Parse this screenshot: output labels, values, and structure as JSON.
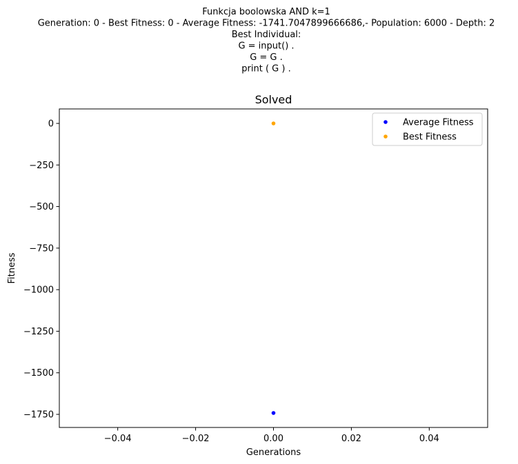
{
  "figure": {
    "suptitle_lines": [
      "Funkcja boolowska AND k=1",
      "Generation: 0 - Best Fitness: 0 - Average Fitness: -1741.7047899666686,- Population: 6000 - Depth: 2",
      "Best Individual:",
      "G = input() .",
      "G = G .",
      "print ( G ) ."
    ]
  },
  "chart_data": {
    "type": "scatter",
    "title": "Solved",
    "xlabel": "Generations",
    "ylabel": "Fitness",
    "xlim": [
      -0.055,
      0.055
    ],
    "ylim": [
      -1828.79,
      87.09
    ],
    "xticks": [
      -0.04,
      -0.02,
      0.0,
      0.02,
      0.04
    ],
    "xtick_labels": [
      "−0.04",
      "−0.02",
      "0.00",
      "0.02",
      "0.04"
    ],
    "yticks": [
      0,
      -250,
      -500,
      -750,
      -1000,
      -1250,
      -1500,
      -1750
    ],
    "ytick_labels": [
      "0",
      "−250",
      "−500",
      "−750",
      "−1000",
      "−1250",
      "−1500",
      "−1750"
    ],
    "grid": false,
    "legend_position": "upper right",
    "series": [
      {
        "name": "Average Fitness",
        "color": "#0000ff",
        "x": [
          0
        ],
        "y": [
          -1741.7047899666686
        ]
      },
      {
        "name": "Best Fitness",
        "color": "#ffa500",
        "x": [
          0
        ],
        "y": [
          0
        ]
      }
    ]
  }
}
